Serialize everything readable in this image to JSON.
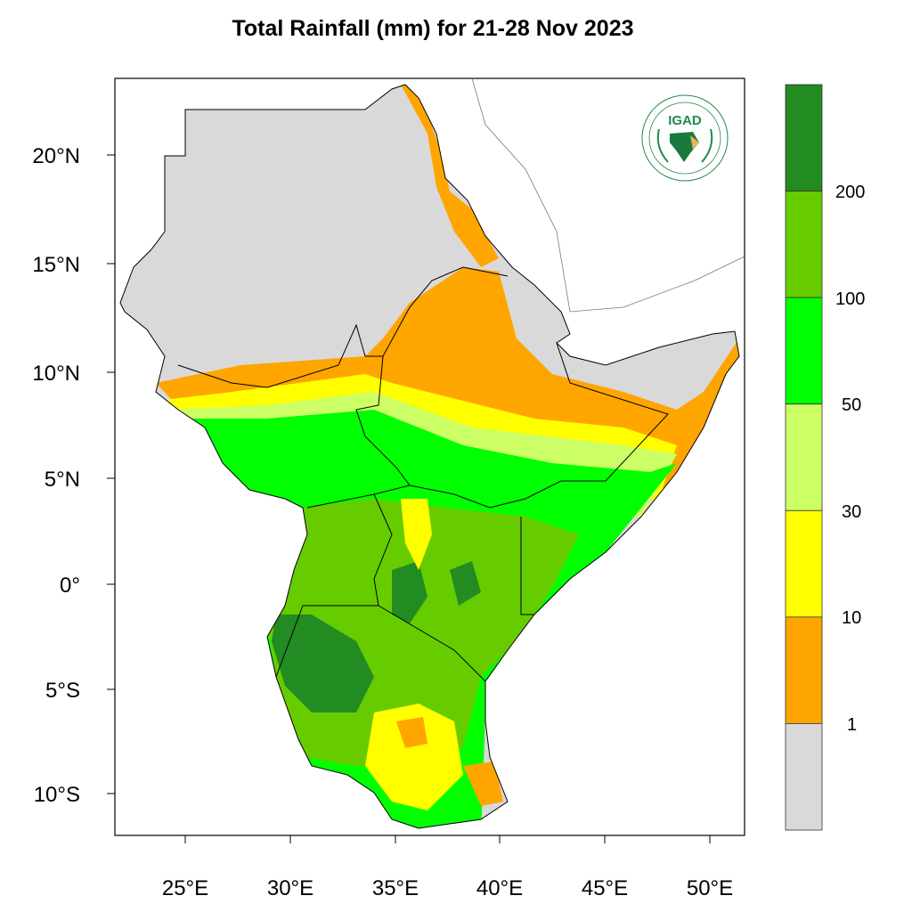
{
  "title": "Total Rainfall (mm) for 21-28 Nov 2023",
  "map": {
    "lat_ticks": [
      "20°N",
      "15°N",
      "10°N",
      "5°N",
      "0°",
      "5°S",
      "10°S"
    ],
    "lon_ticks": [
      "25°E",
      "30°E",
      "35°E",
      "40°E",
      "45°E",
      "50°E"
    ],
    "colorbar": {
      "labels": [
        "200",
        "100",
        "50",
        "30",
        "10",
        "1"
      ],
      "colors": [
        "#228b22",
        "#66cc00",
        "#00ff00",
        "#ccff66",
        "#ffff00",
        "#ffa500",
        "#d9d9d9"
      ]
    },
    "logo": {
      "text": "IGAD",
      "ring_text": "INTERGOVERNMENTAL AUTHORITY ON DEVELOPMENT · AUTORITÉ INTERGOUVERNEMENTALE POUR LE DÉVELOPPEMENT"
    }
  }
}
